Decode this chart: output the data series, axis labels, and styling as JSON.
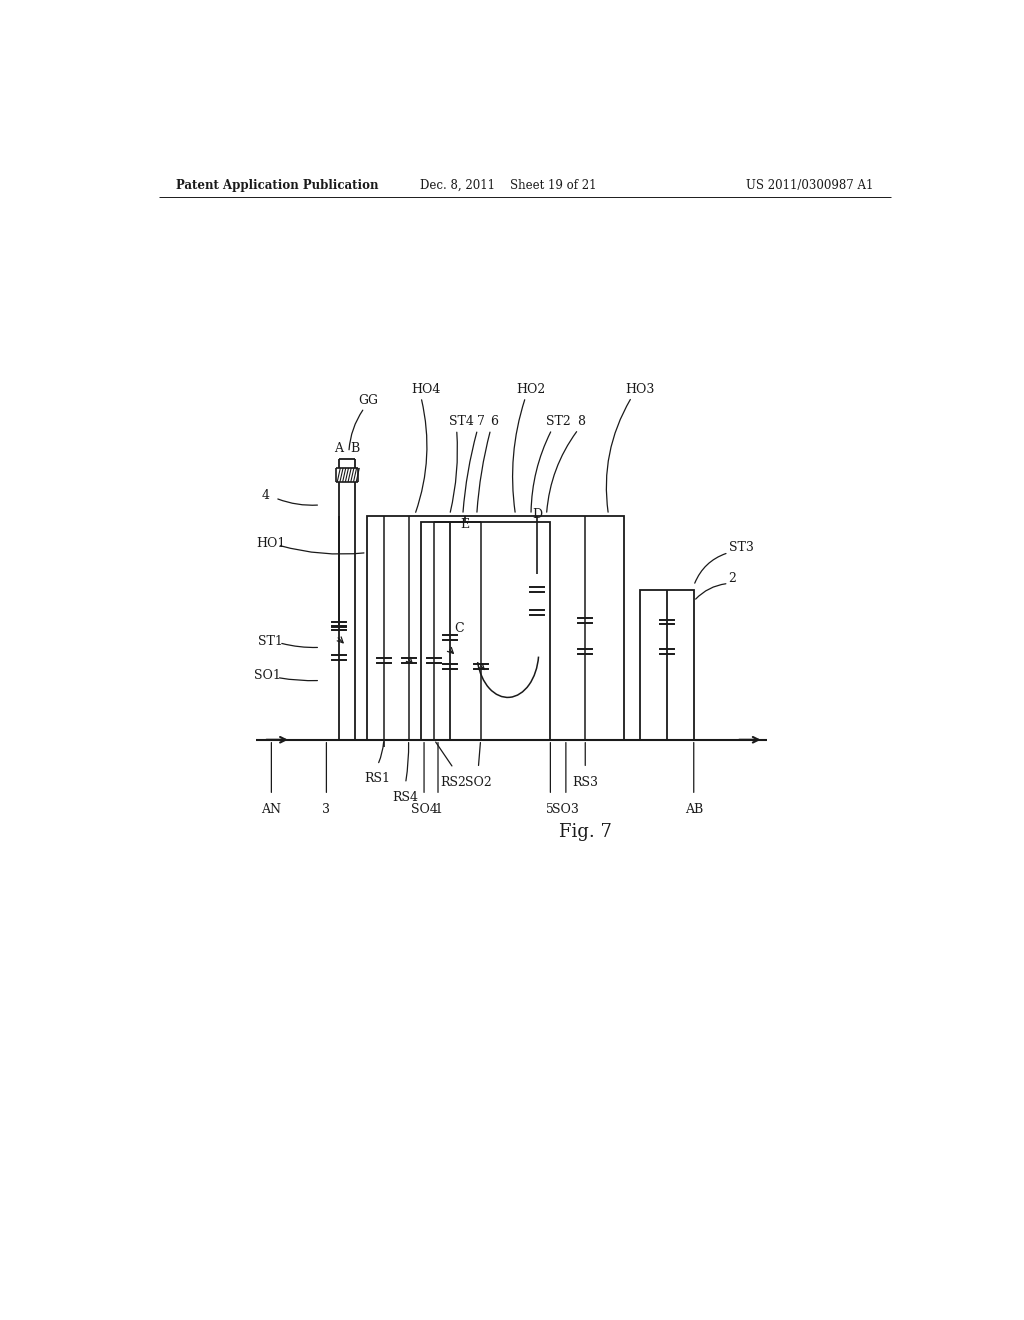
{
  "title_left": "Patent Application Publication",
  "title_center": "Dec. 8, 2011    Sheet 19 of 21",
  "title_right": "US 2011/0300987 A1",
  "fig_label": "Fig. 7",
  "background": "#ffffff",
  "line_color": "#1a1a1a"
}
